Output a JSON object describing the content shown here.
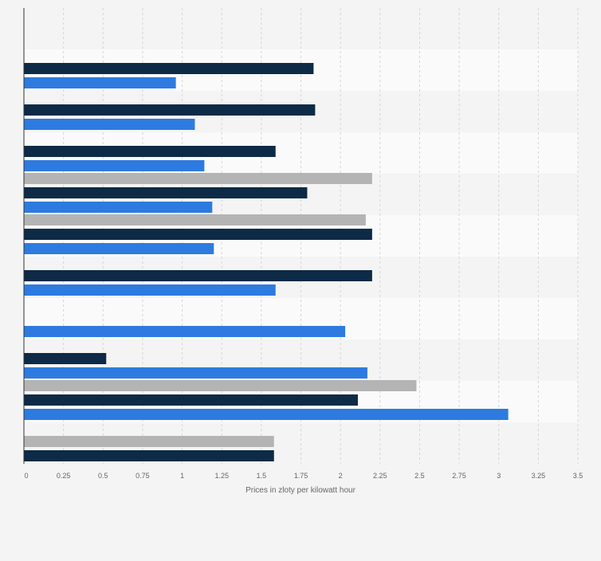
{
  "chart_data": {
    "type": "bar",
    "orientation": "horizontal",
    "title": "",
    "xlabel": "Prices in zloty per kilowatt hour",
    "ylabel": "",
    "xlim": [
      0,
      3.5
    ],
    "xticks": [
      0,
      0.25,
      0.5,
      0.75,
      1,
      1.25,
      1.5,
      1.75,
      2,
      2.25,
      2.5,
      2.75,
      3,
      3.25,
      3.5
    ],
    "xtick_labels": [
      "0",
      "0.25",
      "0.5",
      "0.75",
      "1",
      "1.25",
      "1.5",
      "1.75",
      "2",
      "2.25",
      "2.5",
      "2.75",
      "3",
      "3.25",
      "3.5"
    ],
    "grid": true,
    "legend": "none",
    "categories": [
      "",
      "",
      "",
      "",
      "",
      "",
      "",
      "",
      "",
      "",
      ""
    ],
    "series": [
      {
        "color": "#b4b4b4",
        "values": [
          null,
          null,
          null,
          null,
          2.2,
          2.16,
          null,
          null,
          null,
          2.48,
          1.58
        ]
      },
      {
        "color": "#0d2a46",
        "values": [
          null,
          1.83,
          1.84,
          1.59,
          1.79,
          2.2,
          2.2,
          null,
          0.52,
          2.11,
          1.58
        ]
      },
      {
        "color": "#2d7be0",
        "values": [
          null,
          0.96,
          1.08,
          1.14,
          1.19,
          1.2,
          1.59,
          2.03,
          2.17,
          3.06,
          null
        ]
      }
    ]
  }
}
